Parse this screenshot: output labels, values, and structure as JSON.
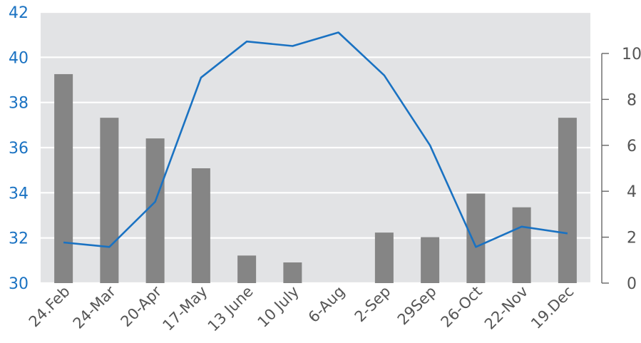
{
  "chart_data": {
    "type": "bar",
    "categories": [
      "24.Feb",
      "24-Mar",
      "20-Apr",
      "17-May",
      "13 June",
      "10 July",
      "6-Aug",
      "2-Sep",
      "29Sep",
      "26-Oct",
      "22-Nov",
      "19.Dec"
    ],
    "series": [
      {
        "type": "bar",
        "axis": "right",
        "values": [
          9.1,
          7.2,
          6.3,
          5.0,
          1.2,
          0.9,
          0.0,
          2.2,
          2.0,
          3.9,
          3.3,
          7.2
        ]
      },
      {
        "type": "line",
        "axis": "left",
        "values": [
          31.8,
          31.6,
          33.6,
          39.1,
          40.7,
          40.5,
          41.1,
          39.2,
          36.1,
          31.6,
          32.5,
          32.2
        ]
      }
    ],
    "y_left": {
      "lim": [
        30,
        42
      ],
      "ticks": [
        "30",
        "32",
        "34",
        "36",
        "38",
        "40",
        "42"
      ]
    },
    "y_right": {
      "lim": [
        0,
        11.8
      ],
      "ticks": [
        "0",
        "2",
        "4",
        "6",
        "8",
        "10"
      ]
    },
    "grid": true,
    "colors": {
      "plot_background": "#e2e3e5",
      "bar": "#858585",
      "line": "#1a72c2",
      "left_axis_text": "#1a72c2",
      "right_axis_text": "#555555"
    }
  }
}
